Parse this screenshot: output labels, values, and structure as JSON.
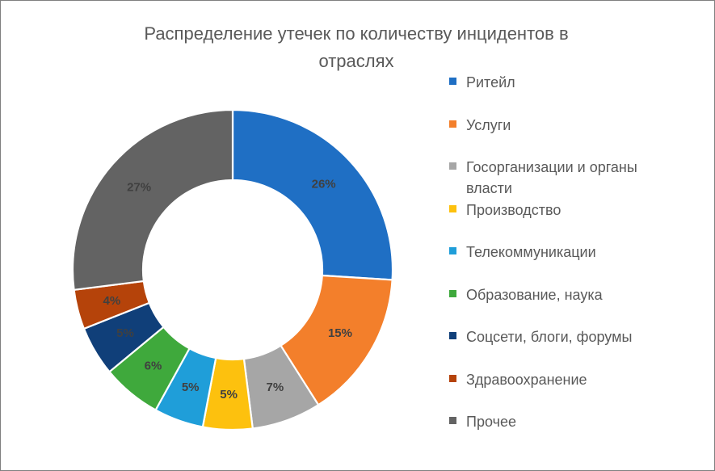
{
  "chart_data": {
    "type": "pie",
    "variant": "donut",
    "title": "Распределение утечек по количеству инцидентов в отраслях",
    "title_lines": [
      "Распределение утечек по количеству инцидентов в",
      "отраслях"
    ],
    "legend_position": "right",
    "slices": [
      {
        "label": "Ритейл",
        "value": 26,
        "display": "26%",
        "color": "#1f6fc4",
        "label_color": "#404040"
      },
      {
        "label": "Услуги",
        "value": 15,
        "display": "15%",
        "color": "#f37f2b",
        "label_color": "#404040"
      },
      {
        "label": "Госорганизации и органы власти",
        "label_lines": [
          "Госорганизации и органы",
          "власти"
        ],
        "value": 7,
        "display": "7%",
        "color": "#a6a6a6",
        "label_color": "#404040"
      },
      {
        "label": "Производство",
        "value": 5,
        "display": "5%",
        "color": "#fdc10e",
        "label_color": "#404040"
      },
      {
        "label": "Телекоммуникации",
        "value": 5,
        "display": "5%",
        "color": "#1f9ed9",
        "label_color": "#404040"
      },
      {
        "label": "Образование, наука",
        "value": 6,
        "display": "6%",
        "color": "#3fa93c",
        "label_color": "#404040"
      },
      {
        "label": "Соцсети, блоги, форумы",
        "value": 5,
        "display": "5%",
        "color": "#103f79",
        "label_color": "#404040"
      },
      {
        "label": "Здравоохранение",
        "value": 4,
        "display": "4%",
        "color": "#b5430a",
        "label_color": "#404040"
      },
      {
        "label": "Прочее",
        "value": 27,
        "display": "27%",
        "color": "#636363",
        "label_color": "#404040"
      }
    ]
  }
}
